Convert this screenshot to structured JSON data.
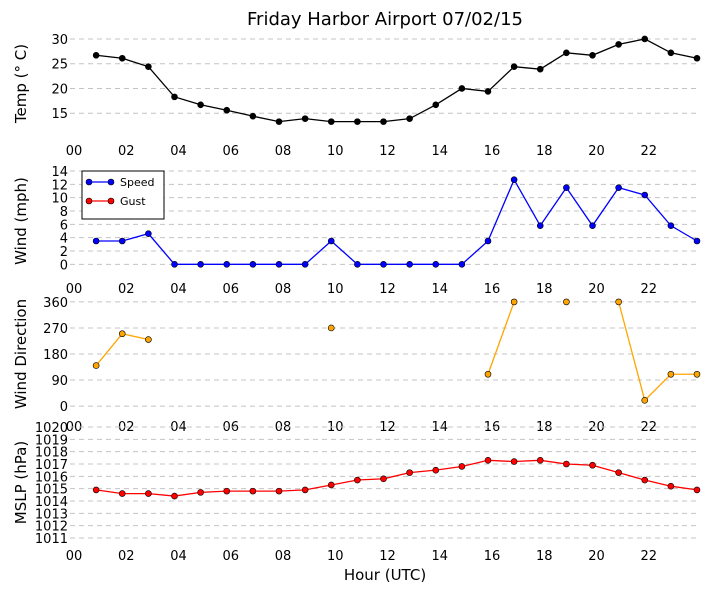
{
  "chart_data": {
    "title": "Friday Harbor Airport 07/02/15",
    "xlabel": "Hour (UTC)",
    "x_ticks": [
      "00",
      "02",
      "04",
      "06",
      "08",
      "10",
      "12",
      "14",
      "16",
      "18",
      "20",
      "22"
    ],
    "xlim": [
      0,
      24
    ],
    "grid": "horizontal dashed",
    "panels": [
      {
        "type": "line",
        "ylabel": "Temp ($^\\circ$C)",
        "ylabel_display": "Temp (° C)",
        "ylim": [
          11,
          31
        ],
        "yticks": [
          15,
          20,
          25,
          30
        ],
        "series": [
          {
            "color": "#000000",
            "x": [
              1,
              2,
              3,
              4,
              5,
              6,
              7,
              8,
              9,
              10,
              11,
              12,
              13,
              14,
              15,
              16,
              17,
              18,
              19,
              20,
              21,
              22,
              23,
              24
            ],
            "values": [
              26.7,
              26.1,
              24.4,
              18.3,
              16.7,
              15.6,
              14.4,
              13.3,
              13.9,
              13.3,
              13.3,
              13.3,
              13.9,
              16.7,
              20.0,
              19.4,
              24.4,
              23.9,
              27.2,
              26.7,
              28.9,
              30.0,
              27.2,
              26.1
            ]
          }
        ]
      },
      {
        "type": "line",
        "ylabel": "Wind (mph)",
        "ylim": [
          -1,
          14
        ],
        "yticks": [
          0,
          2,
          4,
          6,
          8,
          10,
          12,
          14
        ],
        "legend": "upper left",
        "series": [
          {
            "name": "Speed",
            "color": "#0000ff",
            "x": [
              1,
              2,
              3,
              4,
              5,
              6,
              7,
              8,
              9,
              10,
              11,
              12,
              13,
              14,
              15,
              16,
              17,
              18,
              19,
              20,
              21,
              22,
              23,
              24
            ],
            "values": [
              3.5,
              3.5,
              4.6,
              0,
              0,
              0,
              0,
              0,
              0,
              3.5,
              0,
              0,
              0,
              0,
              0,
              3.5,
              12.7,
              5.8,
              11.5,
              5.8,
              11.5,
              10.4,
              5.8,
              3.5
            ]
          },
          {
            "name": "Gust",
            "color": "#ff0000",
            "x": [],
            "values": []
          }
        ]
      },
      {
        "type": "line",
        "ylabel": "Wind Direction",
        "ylim": [
          -10,
          370
        ],
        "yticks": [
          0,
          90,
          180,
          270,
          360
        ],
        "series": [
          {
            "color": "#ffa500",
            "x": [
              1,
              2,
              3,
              4,
              5,
              6,
              7,
              8,
              9,
              10,
              11,
              12,
              13,
              14,
              15,
              16,
              17,
              18,
              19,
              20,
              21,
              22,
              23,
              24
            ],
            "values": [
              140,
              250,
              230,
              null,
              null,
              null,
              null,
              null,
              null,
              270,
              null,
              null,
              null,
              null,
              null,
              110,
              360,
              null,
              360,
              null,
              360,
              20,
              110,
              110
            ]
          }
        ]
      },
      {
        "type": "line",
        "ylabel": "MSLP (hPa)",
        "ylim": [
          1011,
          1020
        ],
        "yticks": [
          1011,
          1012,
          1013,
          1014,
          1015,
          1016,
          1017,
          1018,
          1019,
          1020
        ],
        "series": [
          {
            "color": "#ff0000",
            "x": [
              1,
              2,
              3,
              4,
              5,
              6,
              7,
              8,
              9,
              10,
              11,
              12,
              13,
              14,
              15,
              16,
              17,
              18,
              19,
              20,
              21,
              22,
              23,
              24
            ],
            "values": [
              1014.9,
              1014.6,
              1014.6,
              1014.4,
              1014.7,
              1014.8,
              1014.8,
              1014.8,
              1014.9,
              1015.3,
              1015.7,
              1015.8,
              1016.3,
              1016.5,
              1016.8,
              1017.3,
              1017.2,
              1017.3,
              1017.0,
              1016.9,
              1016.3,
              1015.7,
              1015.2,
              1014.9
            ]
          }
        ]
      }
    ]
  }
}
